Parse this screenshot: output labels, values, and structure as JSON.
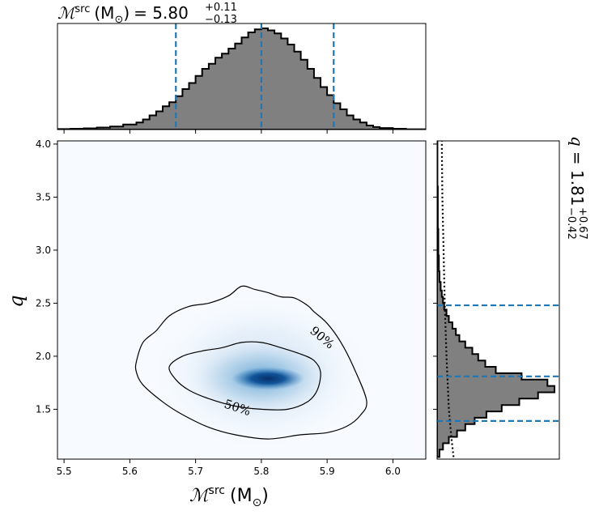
{
  "chart_data": {
    "type": "corner",
    "title_top": {
      "symbol": "ℳ",
      "superscript": "src",
      "unit": "(M",
      "unit_sub": "⊙",
      "unit_close": ")",
      "equals": "= 5.80",
      "plus": "+0.11",
      "minus": "−0.13"
    },
    "title_right": {
      "symbol": "q",
      "equals": "= 1.81",
      "plus": "+0.67",
      "minus": "−0.42"
    },
    "xlabel": {
      "symbol": "ℳ",
      "superscript": "src",
      "unit": "(M",
      "unit_sub": "⊙",
      "unit_close": ")"
    },
    "ylabel": "q",
    "xlim": [
      5.49,
      6.05
    ],
    "ylim": [
      1.03,
      4.03
    ],
    "x_ticks": [
      5.5,
      5.6,
      5.7,
      5.8,
      5.9,
      6.0
    ],
    "x_tick_labels": [
      "5.5",
      "5.6",
      "5.7",
      "5.8",
      "5.9",
      "6.0"
    ],
    "y_ticks": [
      1.5,
      2.0,
      2.5,
      3.0,
      3.5,
      4.0
    ],
    "y_tick_labels": [
      "1.5",
      "2.0",
      "2.5",
      "3.0",
      "3.5",
      "4.0"
    ],
    "contour_labels": [
      "90%",
      "50%"
    ],
    "mchirp_marginal": {
      "median": 5.8,
      "lower": 5.67,
      "upper": 5.91,
      "bin_edges": [
        5.49,
        5.51,
        5.53,
        5.55,
        5.57,
        5.59,
        5.61,
        5.62,
        5.63,
        5.64,
        5.65,
        5.66,
        5.67,
        5.68,
        5.69,
        5.7,
        5.71,
        5.72,
        5.73,
        5.74,
        5.75,
        5.76,
        5.77,
        5.78,
        5.79,
        5.8,
        5.81,
        5.82,
        5.83,
        5.84,
        5.85,
        5.86,
        5.87,
        5.88,
        5.89,
        5.9,
        5.91,
        5.92,
        5.93,
        5.94,
        5.95,
        5.96,
        5.97,
        5.98,
        6.0,
        6.02,
        6.05
      ],
      "counts": [
        0.005,
        0.008,
        0.012,
        0.02,
        0.03,
        0.05,
        0.07,
        0.1,
        0.14,
        0.18,
        0.23,
        0.27,
        0.33,
        0.4,
        0.46,
        0.53,
        0.6,
        0.65,
        0.71,
        0.75,
        0.8,
        0.85,
        0.91,
        0.96,
        0.99,
        1.0,
        0.98,
        0.95,
        0.9,
        0.84,
        0.77,
        0.69,
        0.6,
        0.51,
        0.42,
        0.34,
        0.26,
        0.2,
        0.14,
        0.1,
        0.07,
        0.04,
        0.025,
        0.015,
        0.008,
        0.003
      ]
    },
    "q_marginal": {
      "median": 1.81,
      "lower": 1.39,
      "upper": 2.48,
      "bin_edges": [
        1.05,
        1.12,
        1.18,
        1.24,
        1.3,
        1.36,
        1.42,
        1.48,
        1.54,
        1.6,
        1.66,
        1.72,
        1.78,
        1.84,
        1.9,
        1.96,
        2.02,
        2.08,
        2.14,
        2.2,
        2.26,
        2.32,
        2.38,
        2.44,
        2.5,
        2.56,
        2.62,
        2.7,
        2.8,
        2.95,
        3.2,
        3.6,
        4.03
      ],
      "counts": [
        0.02,
        0.05,
        0.1,
        0.17,
        0.24,
        0.32,
        0.42,
        0.55,
        0.7,
        0.86,
        1.0,
        0.94,
        0.72,
        0.5,
        0.41,
        0.35,
        0.3,
        0.24,
        0.19,
        0.16,
        0.13,
        0.1,
        0.08,
        0.06,
        0.05,
        0.04,
        0.03,
        0.02,
        0.015,
        0.01,
        0.006,
        0.003
      ],
      "prior_curve": [
        [
          1.05,
          0.14
        ],
        [
          1.25,
          0.12
        ],
        [
          1.5,
          0.1
        ],
        [
          2.0,
          0.08
        ],
        [
          2.5,
          0.065
        ],
        [
          3.0,
          0.055
        ],
        [
          3.5,
          0.045
        ],
        [
          4.03,
          0.04
        ]
      ]
    },
    "density_peak": [
      5.81,
      1.79
    ],
    "contour_90": [
      [
        5.61,
        1.95
      ],
      [
        5.62,
        2.13
      ],
      [
        5.64,
        2.24
      ],
      [
        5.66,
        2.38
      ],
      [
        5.69,
        2.47
      ],
      [
        5.72,
        2.5
      ],
      [
        5.75,
        2.57
      ],
      [
        5.77,
        2.66
      ],
      [
        5.79,
        2.63
      ],
      [
        5.81,
        2.6
      ],
      [
        5.83,
        2.56
      ],
      [
        5.85,
        2.55
      ],
      [
        5.87,
        2.48
      ],
      [
        5.88,
        2.42
      ],
      [
        5.9,
        2.31
      ],
      [
        5.92,
        2.14
      ],
      [
        5.94,
        1.9
      ],
      [
        5.96,
        1.58
      ],
      [
        5.95,
        1.44
      ],
      [
        5.93,
        1.34
      ],
      [
        5.9,
        1.28
      ],
      [
        5.86,
        1.26
      ],
      [
        5.81,
        1.22
      ],
      [
        5.76,
        1.26
      ],
      [
        5.72,
        1.33
      ],
      [
        5.68,
        1.45
      ],
      [
        5.65,
        1.57
      ],
      [
        5.62,
        1.73
      ],
      [
        5.61,
        1.85
      ]
    ],
    "contour_50": [
      [
        5.66,
        1.9
      ],
      [
        5.68,
        2.0
      ],
      [
        5.71,
        2.05
      ],
      [
        5.74,
        2.08
      ],
      [
        5.77,
        2.13
      ],
      [
        5.8,
        2.13
      ],
      [
        5.83,
        2.08
      ],
      [
        5.86,
        2.02
      ],
      [
        5.88,
        1.96
      ],
      [
        5.89,
        1.85
      ],
      [
        5.885,
        1.68
      ],
      [
        5.87,
        1.57
      ],
      [
        5.84,
        1.5
      ],
      [
        5.8,
        1.5
      ],
      [
        5.76,
        1.53
      ],
      [
        5.72,
        1.6
      ],
      [
        5.69,
        1.68
      ],
      [
        5.67,
        1.78
      ]
    ]
  }
}
